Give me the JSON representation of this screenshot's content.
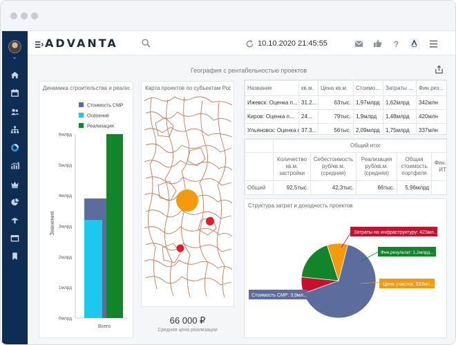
{
  "app": {
    "logo_text": "ADVANTA",
    "datetime": "10.10.2020 21:45:55"
  },
  "dashboard": {
    "title": "География с рентабельностью проектов"
  },
  "bar_panel": {
    "title": "Динамика строительства и реализации",
    "ylabel": "Значения",
    "category": "Всего",
    "legend": [
      {
        "name": "Стоимость СМР",
        "color": "#5c6c9c"
      },
      {
        "name": "Освоение",
        "color": "#1bc8ee"
      },
      {
        "name": "Реализация",
        "color": "#12842a"
      }
    ],
    "ticks": [
      "6млрд",
      "5млрд",
      "4млрд",
      "3млрд",
      "2млрд",
      "1млрд",
      "0млрд"
    ]
  },
  "map_panel": {
    "title": "Карта проектов по субъектам Российской Федерации",
    "kpi_value": "66 000 ₽",
    "kpi_label": "Средняя цена реализации"
  },
  "projects_table": {
    "columns": [
      "Название",
      "кв.м.",
      "Цена кв.м.",
      "Стоимо...",
      "Затраты ...",
      "Фин.рез..."
    ],
    "rows": [
      [
        "Ижевск: Оценка п...",
        "31.2...",
        "63тыс.",
        "1,97млрд",
        "1,62млрд",
        "342млн"
      ],
      [
        "Киров: Оценка п...",
        "24...",
        "79тыс.",
        "1,9млрд",
        "1,48млрд",
        "420млн"
      ],
      [
        "Ульяновск: Оценка п...",
        "37.3...",
        "56тыс.",
        "2,09млрд",
        "1,75млрд",
        "337млн"
      ]
    ]
  },
  "summary_table": {
    "group_header": "Общий итог",
    "columns": [
      "Количество кв.м. застройки",
      "Себестоимость руб/кв.м. (средняя)",
      "Реализация руб/кв.м. (средняя)",
      "Общая стоимость портфеля",
      "Фин.рез ИТ..."
    ],
    "row_label": "Общий",
    "row": [
      "92,5тыс.",
      "42,3тыс.",
      "66тыс.",
      "5,96млрд",
      ""
    ]
  },
  "pie_panel": {
    "title": "Структура затрат и доходность проектов",
    "labels": [
      {
        "text": "Затраты на инфраструктуру: 423мл...",
        "color": "#c8102e"
      },
      {
        "text": "Фин.результат: 1,1млрд...",
        "color": "#12842a"
      },
      {
        "text": "Цена участка: 533мл...",
        "color": "#f59a0c"
      },
      {
        "text": "Стоимость СМР: 3,9мл...",
        "color": "#5c6c9c"
      }
    ]
  },
  "chart_data": [
    {
      "type": "bar",
      "title": "Динамика строительства и реализации",
      "categories": [
        "Всего"
      ],
      "ylabel": "Значения",
      "ylim": [
        0,
        6
      ],
      "series": [
        {
          "name": "Стоимость СМР",
          "values": [
            3.9
          ]
        },
        {
          "name": "Освоение",
          "values": [
            3.2
          ]
        },
        {
          "name": "Реализация",
          "values": [
            6.0
          ]
        }
      ]
    },
    {
      "type": "pie",
      "title": "Структура затрат и доходность проектов",
      "categories": [
        "Стоимость СМР",
        "Затраты на инфраструктуру",
        "Фин.результат",
        "Цена участка"
      ],
      "values": [
        3.9,
        0.423,
        1.1,
        0.533
      ]
    }
  ]
}
